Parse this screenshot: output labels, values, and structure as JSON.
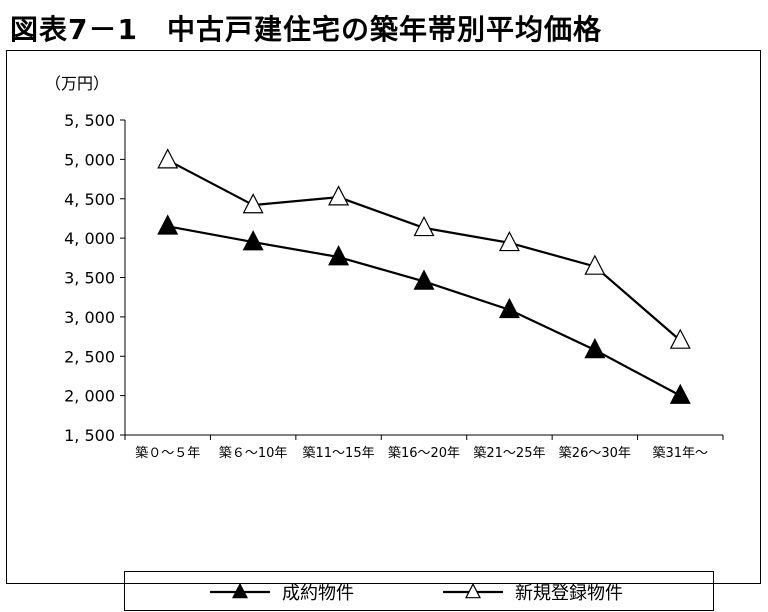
{
  "figure_title": "図表7－1　中古戸建住宅の築年帯別平均価格",
  "chart_data": {
    "type": "line",
    "title": "図表7－1　中古戸建住宅の築年帯別平均価格",
    "ylabel": "（万円）",
    "xlabel": "",
    "ylim": [
      1500,
      5500
    ],
    "ytick_step": 500,
    "ytick_labels": [
      "1, 500",
      "2, 000",
      "2, 500",
      "3, 000",
      "3, 500",
      "4, 000",
      "4, 500",
      "5, 000",
      "5, 500"
    ],
    "categories": [
      "築０～５年",
      "築６～10年",
      "築11～15年",
      "築16～20年",
      "築21～25年",
      "築26～30年",
      "築31年～"
    ],
    "grid": false,
    "legend_position": "bottom",
    "series": [
      {
        "name": "成約物件",
        "marker": "filled-triangle",
        "color": "#000000",
        "values": [
          4150,
          3950,
          3760,
          3450,
          3090,
          2580,
          2000
        ]
      },
      {
        "name": "新規登録物件",
        "marker": "open-triangle",
        "color": "#000000",
        "values": [
          4990,
          4420,
          4520,
          4130,
          3940,
          3640,
          2700
        ]
      }
    ]
  }
}
